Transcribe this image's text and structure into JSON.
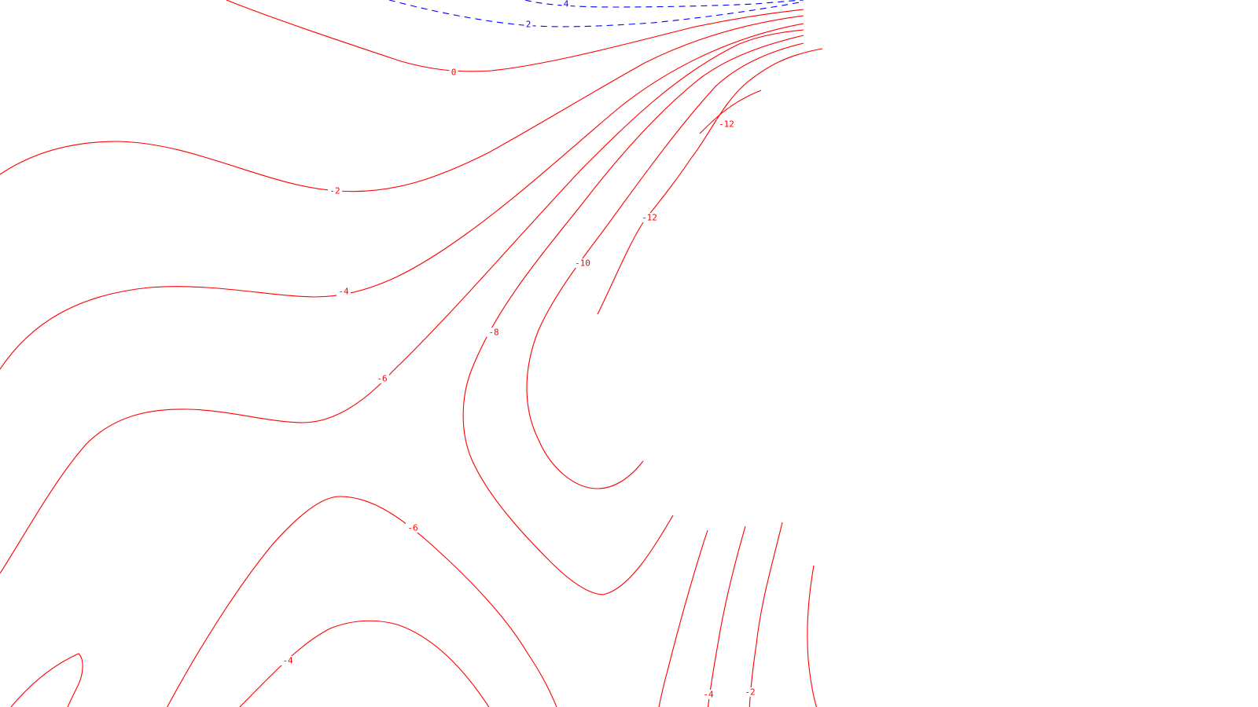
{
  "chart_data": {
    "type": "contour",
    "title": "",
    "xlabel": "",
    "ylabel": "",
    "colors": {
      "negative": "#ff0000",
      "positive": "#0000ff",
      "background": "#ffffff"
    },
    "line_styles": {
      "negative": "solid",
      "positive": "dashed"
    },
    "levels_labeled": [
      {
        "id": "pos-4",
        "text": "4"
      },
      {
        "id": "pos-2",
        "text": "2"
      },
      {
        "id": "zero",
        "text": "0"
      },
      {
        "id": "neg2-left",
        "text": "-2"
      },
      {
        "id": "neg4-left",
        "text": "-4"
      },
      {
        "id": "neg6-mid",
        "text": "-6"
      },
      {
        "id": "neg8",
        "text": "-8"
      },
      {
        "id": "neg10",
        "text": "-10"
      },
      {
        "id": "neg12-inner",
        "text": "-12"
      },
      {
        "id": "neg12-outer",
        "text": "-12"
      },
      {
        "id": "neg6-lower",
        "text": "-6"
      },
      {
        "id": "neg4-lower",
        "text": "-4"
      },
      {
        "id": "neg4-right",
        "text": "-4"
      },
      {
        "id": "neg2-right",
        "text": "-2"
      }
    ]
  }
}
